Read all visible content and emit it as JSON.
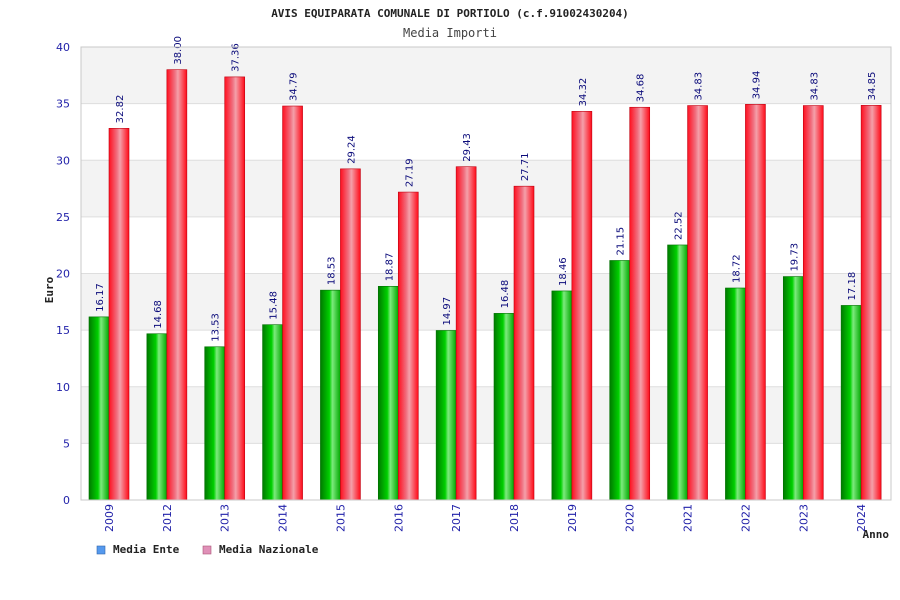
{
  "chart_data": {
    "type": "bar",
    "title": "AVIS EQUIPARATA COMUNALE DI PORTIOLO (c.f.91002430204)",
    "subtitle": "Media Importi",
    "xlabel": "Anno",
    "ylabel": "Euro",
    "ylim": [
      0,
      40
    ],
    "yticks": [
      0,
      5,
      10,
      15,
      20,
      25,
      30,
      35,
      40
    ],
    "grid": true,
    "legend_position": "bottom-left",
    "categories": [
      "2009",
      "2012",
      "2013",
      "2014",
      "2015",
      "2016",
      "2017",
      "2018",
      "2019",
      "2020",
      "2021",
      "2022",
      "2023",
      "2024"
    ],
    "series": [
      {
        "name": "Media Ente",
        "color": "#00b000",
        "legend_color": "#5599ee",
        "values": [
          16.17,
          14.68,
          13.53,
          15.48,
          18.53,
          18.87,
          14.97,
          16.48,
          18.46,
          21.15,
          22.52,
          18.72,
          19.73,
          17.18
        ],
        "labels": [
          "16.17",
          "14.68",
          "13.53",
          "15.48",
          "18.53",
          "18.87",
          "14.97",
          "16.48",
          "18.46",
          "21.15",
          "22.52",
          "18.72",
          "19.73",
          "17.18"
        ]
      },
      {
        "name": "Media Nazionale",
        "color": "#ee1122",
        "legend_color": "#e090b8",
        "values": [
          32.82,
          38.0,
          37.36,
          34.79,
          29.24,
          27.19,
          29.43,
          27.71,
          34.32,
          34.68,
          34.83,
          34.94,
          34.83,
          34.85
        ],
        "labels": [
          "32.82",
          "38.00",
          "37.36",
          "34.79",
          "29.24",
          "27.19",
          "29.43",
          "27.71",
          "34.32",
          "34.68",
          "34.83",
          "34.94",
          "34.83",
          "34.85"
        ]
      }
    ]
  }
}
